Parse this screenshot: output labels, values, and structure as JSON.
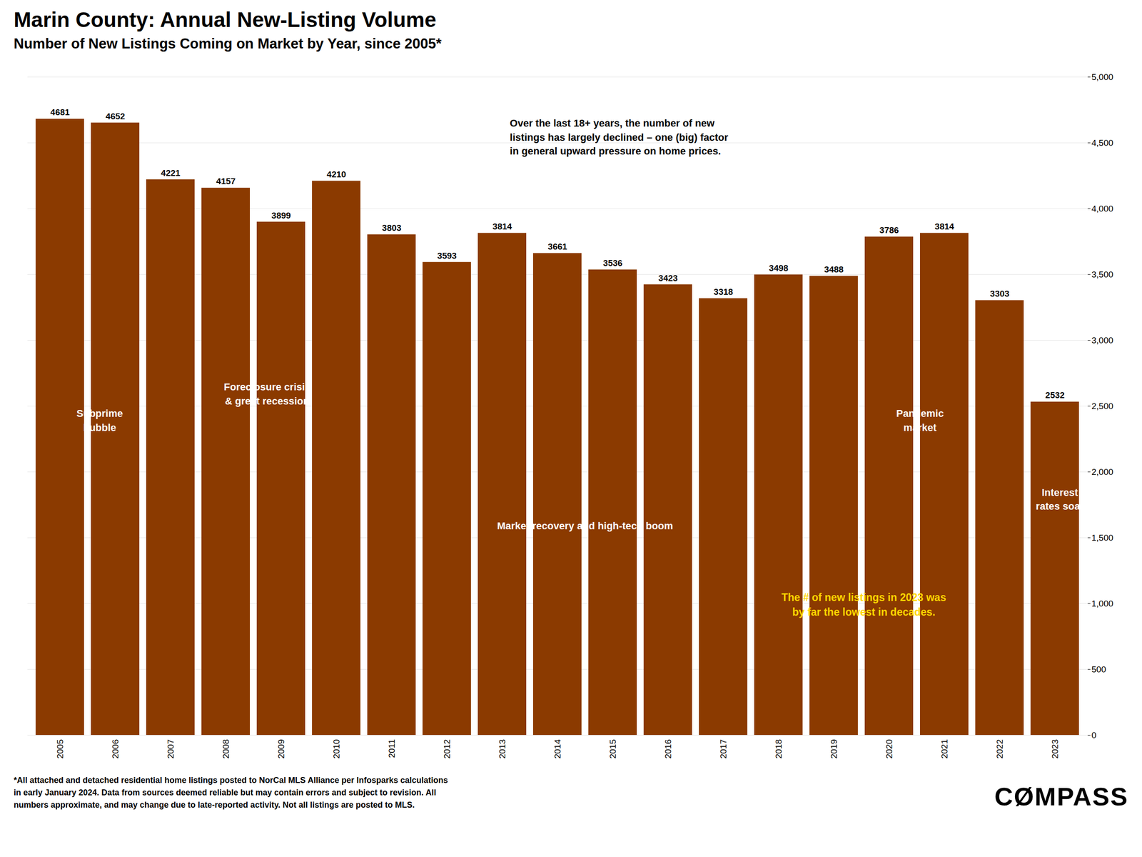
{
  "chart_data": {
    "type": "bar",
    "title": "Marin County: Annual New-Listing Volume",
    "subtitle": "Number of New Listings Coming on Market by Year, since 2005*",
    "categories": [
      "2005",
      "2006",
      "2007",
      "2008",
      "2009",
      "2010",
      "2011",
      "2012",
      "2013",
      "2014",
      "2015",
      "2016",
      "2017",
      "2018",
      "2019",
      "2020",
      "2021",
      "2022",
      "2023"
    ],
    "values": [
      4681,
      4652,
      4221,
      4157,
      3899,
      4210,
      3803,
      3593,
      3814,
      3661,
      3536,
      3423,
      3318,
      3498,
      3488,
      3786,
      3814,
      3303,
      2532
    ],
    "color": "#8B3A00",
    "ylim": [
      0,
      5000
    ],
    "yticks": [
      0,
      500,
      {
        "value": 1000,
        "label": "1,000"
      },
      {
        "value": 1500,
        "label": "1,500"
      },
      {
        "value": 2000,
        "label": "2,000"
      },
      {
        "value": 2500,
        "label": "2,500"
      },
      {
        "value": 3000,
        "label": "3,000"
      },
      {
        "value": 3500,
        "label": "3,500"
      },
      {
        "value": 4000,
        "label": "4,000"
      },
      {
        "value": 4500,
        "label": "4,500"
      },
      {
        "value": 5000,
        "label": "5,000"
      }
    ],
    "grid": true,
    "data_labels": true,
    "annotations": [
      {
        "text": "Over the last 18+ years, the number of new\nlistings has largely declined – one (big) factor\nin general upward pressure on home prices."
      },
      {
        "text": "Subprime\nbubble"
      },
      {
        "text": "Foreclosure crisis\n& great recession"
      },
      {
        "text": "Market recovery and high-tech boom"
      },
      {
        "text": "Pandemic\nmarket"
      },
      {
        "text": "Interest\nrates soar"
      },
      {
        "text": "The # of new listings in 2023 was\nby far the lowest in decades.",
        "color": "#FFD700"
      },
      {
        "text": "*All attached and detached residential home listings posted to NorCal MLS Alliance per Infosparks calculations\nin early January 2024. Data from sources deemed reliable but may contain errors and subject to revision. All\nnumbers approximate, and may change due to late-reported activity. Not all listings are posted to MLS."
      },
      {
        "text": "CØMPASS"
      }
    ]
  }
}
